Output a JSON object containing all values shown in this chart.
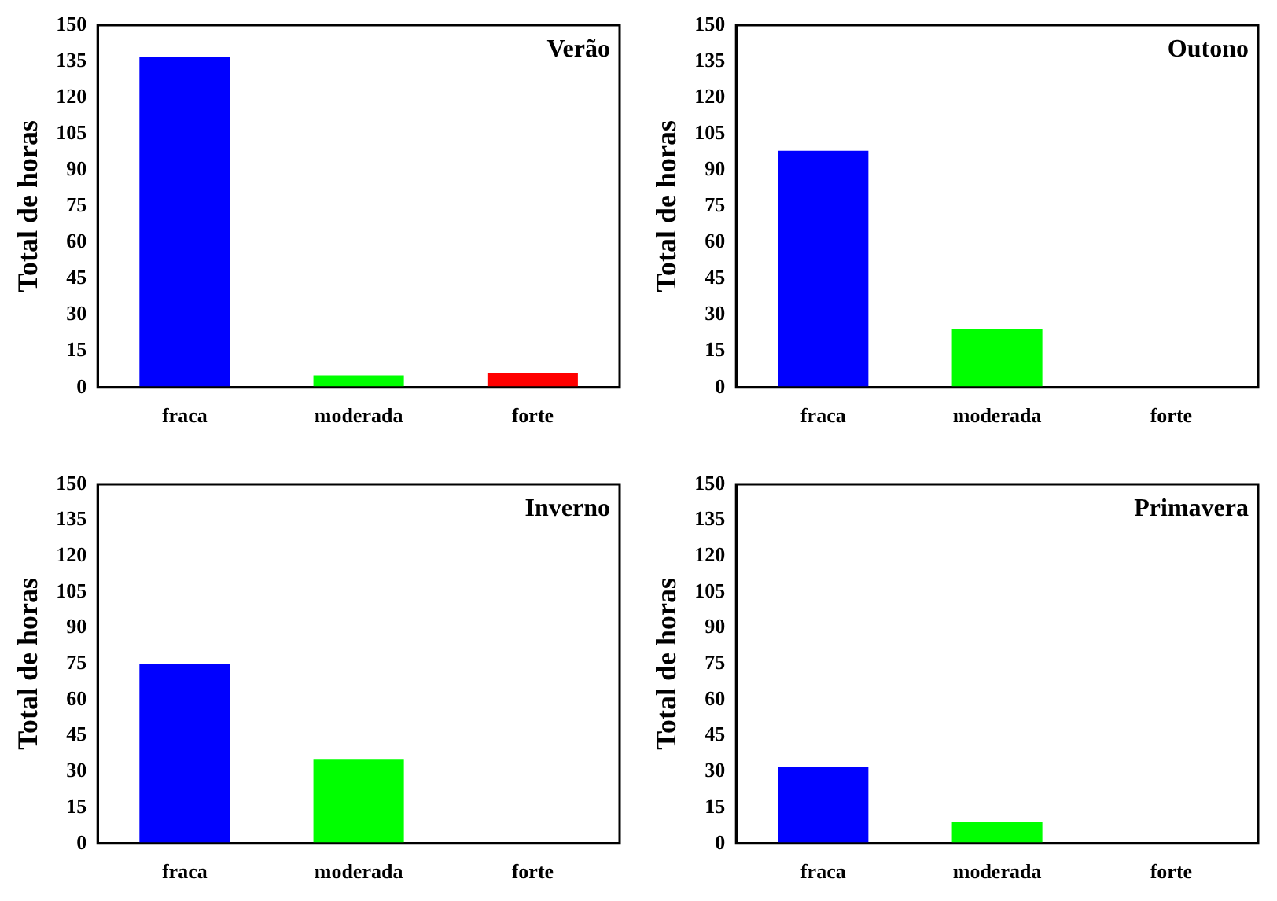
{
  "chart_data": [
    {
      "type": "bar",
      "title": "Verão",
      "ylabel": "Total de horas",
      "categories": [
        "fraca",
        "moderada",
        "forte"
      ],
      "values": [
        137,
        5,
        6
      ],
      "colors": [
        "#0000ff",
        "#00ff00",
        "#ff0000"
      ],
      "ylim": [
        0,
        150
      ],
      "yticks": [
        0,
        15,
        30,
        45,
        60,
        75,
        90,
        105,
        120,
        135,
        150
      ]
    },
    {
      "type": "bar",
      "title": "Outono",
      "ylabel": "Total de horas",
      "categories": [
        "fraca",
        "moderada",
        "forte"
      ],
      "values": [
        98,
        24,
        0
      ],
      "colors": [
        "#0000ff",
        "#00ff00",
        "#ff0000"
      ],
      "ylim": [
        0,
        150
      ],
      "yticks": [
        0,
        15,
        30,
        45,
        60,
        75,
        90,
        105,
        120,
        135,
        150
      ]
    },
    {
      "type": "bar",
      "title": "Inverno",
      "ylabel": "Total de horas",
      "categories": [
        "fraca",
        "moderada",
        "forte"
      ],
      "values": [
        75,
        35,
        0
      ],
      "colors": [
        "#0000ff",
        "#00ff00",
        "#ff0000"
      ],
      "ylim": [
        0,
        150
      ],
      "yticks": [
        0,
        15,
        30,
        45,
        60,
        75,
        90,
        105,
        120,
        135,
        150
      ]
    },
    {
      "type": "bar",
      "title": "Primavera",
      "ylabel": "Total de horas",
      "categories": [
        "fraca",
        "moderada",
        "forte"
      ],
      "values": [
        32,
        9,
        0
      ],
      "colors": [
        "#0000ff",
        "#00ff00",
        "#ff0000"
      ],
      "ylim": [
        0,
        150
      ],
      "yticks": [
        0,
        15,
        30,
        45,
        60,
        75,
        90,
        105,
        120,
        135,
        150
      ]
    }
  ]
}
